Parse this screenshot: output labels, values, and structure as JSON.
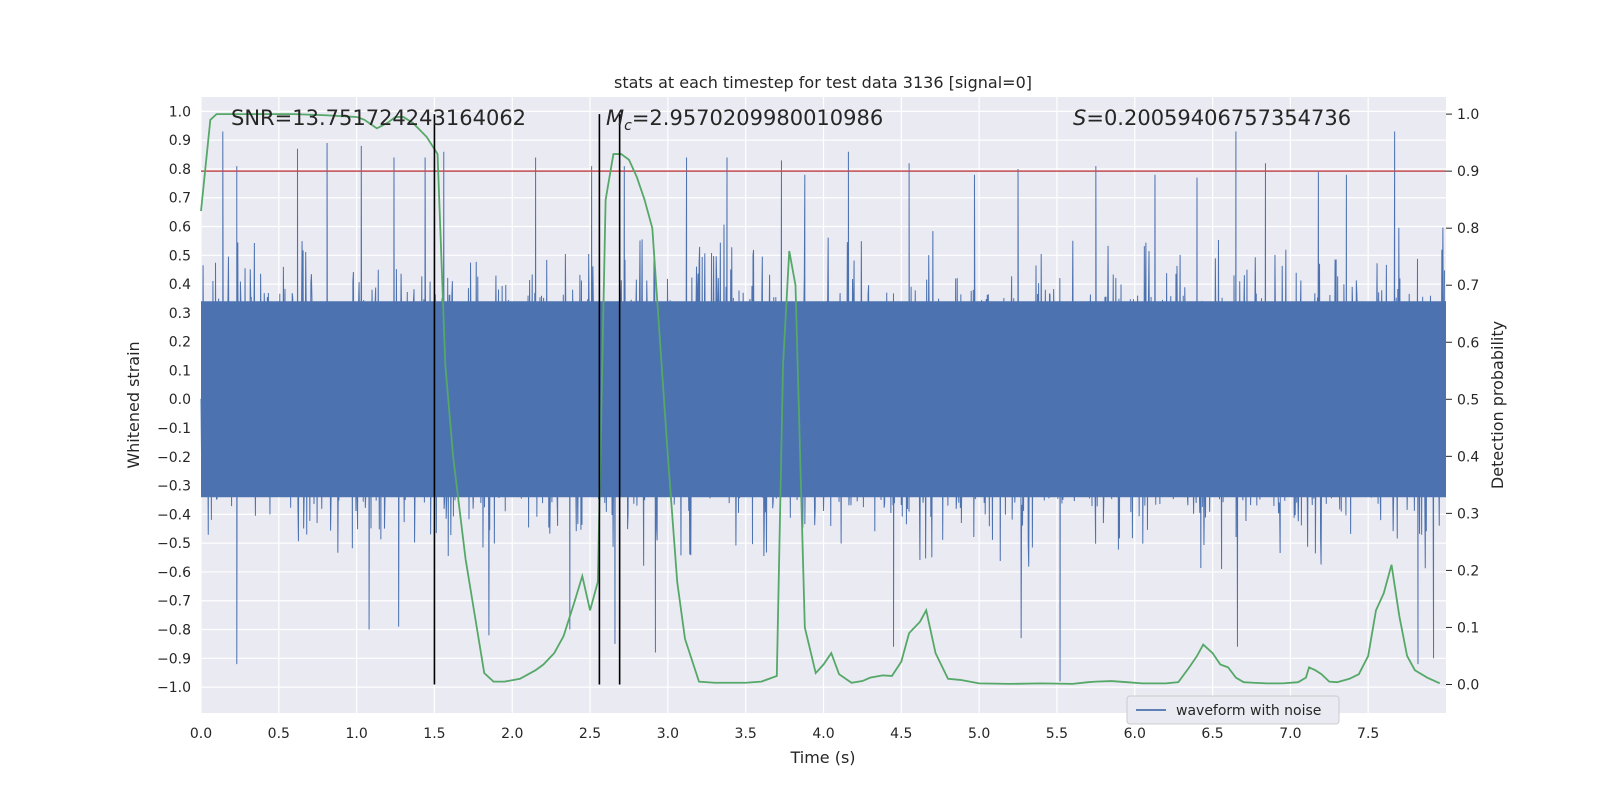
{
  "chart_data": {
    "type": "line",
    "title": "stats at each timestep for test data 3136 [signal=0]",
    "xlabel": "Time (s)",
    "ylabel": "Whitened strain",
    "y2label": "Detection probability",
    "xlim": [
      0.0,
      8.0
    ],
    "ylim": [
      -1.09,
      1.05
    ],
    "y2lim": [
      -0.05,
      1.03
    ],
    "xticks": [
      "0.0",
      "0.5",
      "1.0",
      "1.5",
      "2.0",
      "2.5",
      "3.0",
      "3.5",
      "4.0",
      "4.5",
      "5.0",
      "5.5",
      "6.0",
      "6.5",
      "7.0",
      "7.5"
    ],
    "yticks": [
      "1.0",
      "0.9",
      "0.8",
      "0.7",
      "0.6",
      "0.5",
      "0.4",
      "0.3",
      "0.2",
      "0.1",
      "0.0",
      "−0.1",
      "−0.2",
      "−0.3",
      "−0.4",
      "−0.5",
      "−0.6",
      "−0.7",
      "−0.8",
      "−0.9",
      "−1.0"
    ],
    "y2ticks": [
      "1.0",
      "0.9",
      "0.8",
      "0.7",
      "0.6",
      "0.5",
      "0.4",
      "0.3",
      "0.2",
      "0.1",
      "0.0"
    ],
    "annotations": {
      "snr": "SNR=13.751724243164062",
      "mc_symbol": "M",
      "mc_sub": "c",
      "mc_value": "=2.9570209980010986",
      "s_symbol": "S",
      "s_value": "=0.20059406757354736"
    },
    "legend": {
      "label": "waveform with noise",
      "position": "lower-right"
    },
    "threshold": 0.9,
    "vlines": [
      1.5,
      2.56,
      2.69
    ],
    "series": [
      {
        "name": "waveform with noise",
        "color": "#4c72b0",
        "core_amplitude": 0.37,
        "noise_amplitude": 0.62,
        "spikes": [
          [
            0.14,
            0.93
          ],
          [
            0.23,
            0.81
          ],
          [
            0.62,
            0.87
          ],
          [
            0.81,
            0.89
          ],
          [
            1.03,
            0.88
          ],
          [
            1.24,
            0.84
          ],
          [
            1.44,
            0.84
          ],
          [
            1.56,
            0.86
          ],
          [
            2.15,
            0.84
          ],
          [
            2.51,
            0.81
          ],
          [
            2.72,
            0.81
          ],
          [
            3.12,
            0.84
          ],
          [
            3.38,
            0.84
          ],
          [
            3.73,
            0.83
          ],
          [
            3.88,
            0.78
          ],
          [
            4.16,
            0.86
          ],
          [
            4.55,
            0.82
          ],
          [
            4.97,
            0.78
          ],
          [
            5.25,
            0.8
          ],
          [
            5.75,
            0.81
          ],
          [
            6.13,
            0.78
          ],
          [
            6.4,
            0.77
          ],
          [
            6.65,
            0.93
          ],
          [
            6.84,
            0.82
          ],
          [
            7.18,
            0.79
          ],
          [
            7.36,
            0.78
          ],
          [
            7.67,
            0.93
          ],
          [
            0.23,
            -0.92
          ],
          [
            1.08,
            -0.8
          ],
          [
            1.27,
            -0.79
          ],
          [
            1.85,
            -0.82
          ],
          [
            2.37,
            -0.8
          ],
          [
            2.66,
            -0.85
          ],
          [
            2.92,
            -0.88
          ],
          [
            4.45,
            -0.86
          ],
          [
            5.27,
            -0.83
          ],
          [
            5.52,
            -0.98
          ],
          [
            6.66,
            -0.86
          ],
          [
            7.82,
            -0.92
          ],
          [
            7.92,
            -0.9
          ]
        ]
      },
      {
        "name": "detection probability",
        "color": "#55a868",
        "axis": "right",
        "x": [
          0.0,
          0.06,
          0.1,
          0.2,
          0.4,
          0.6,
          0.8,
          1.0,
          1.05,
          1.13,
          1.2,
          1.25,
          1.3,
          1.36,
          1.45,
          1.52,
          1.57,
          1.62,
          1.7,
          1.76,
          1.82,
          1.88,
          1.95,
          2.05,
          2.15,
          2.2,
          2.27,
          2.33,
          2.4,
          2.45,
          2.5,
          2.55,
          2.6,
          2.65,
          2.7,
          2.75,
          2.8,
          2.85,
          2.9,
          2.95,
          3.0,
          3.06,
          3.11,
          3.2,
          3.3,
          3.5,
          3.6,
          3.7,
          3.74,
          3.78,
          3.82,
          3.88,
          3.95,
          4.0,
          4.05,
          4.1,
          4.18,
          4.25,
          4.3,
          4.38,
          4.44,
          4.5,
          4.55,
          4.62,
          4.66,
          4.72,
          4.8,
          4.88,
          5.0,
          5.2,
          5.4,
          5.6,
          5.7,
          5.75,
          5.85,
          5.95,
          6.05,
          6.2,
          6.28,
          6.35,
          6.4,
          6.44,
          6.5,
          6.55,
          6.6,
          6.65,
          6.7,
          6.76,
          6.85,
          6.95,
          7.05,
          7.1,
          7.12,
          7.16,
          7.2,
          7.25,
          7.3,
          7.38,
          7.44,
          7.5,
          7.55,
          7.6,
          7.65,
          7.7,
          7.75,
          7.8,
          7.88,
          7.96
        ],
        "y": [
          0.83,
          0.99,
          1.0,
          1.0,
          1.0,
          1.0,
          0.998,
          0.995,
          0.99,
          0.975,
          0.985,
          0.995,
          0.995,
          0.985,
          0.96,
          0.93,
          0.56,
          0.4,
          0.22,
          0.12,
          0.02,
          0.005,
          0.005,
          0.01,
          0.025,
          0.035,
          0.055,
          0.085,
          0.145,
          0.19,
          0.13,
          0.18,
          0.85,
          0.93,
          0.93,
          0.92,
          0.89,
          0.85,
          0.8,
          0.6,
          0.4,
          0.18,
          0.08,
          0.005,
          0.003,
          0.003,
          0.005,
          0.015,
          0.56,
          0.76,
          0.7,
          0.1,
          0.02,
          0.035,
          0.055,
          0.018,
          0.003,
          0.006,
          0.012,
          0.016,
          0.015,
          0.04,
          0.09,
          0.11,
          0.13,
          0.055,
          0.01,
          0.008,
          0.002,
          0.001,
          0.002,
          0.001,
          0.004,
          0.005,
          0.006,
          0.004,
          0.002,
          0.002,
          0.004,
          0.03,
          0.05,
          0.07,
          0.055,
          0.035,
          0.03,
          0.012,
          0.004,
          0.003,
          0.002,
          0.002,
          0.004,
          0.012,
          0.03,
          0.025,
          0.018,
          0.005,
          0.004,
          0.01,
          0.018,
          0.05,
          0.13,
          0.16,
          0.21,
          0.12,
          0.05,
          0.025,
          0.012,
          0.002
        ]
      }
    ]
  }
}
